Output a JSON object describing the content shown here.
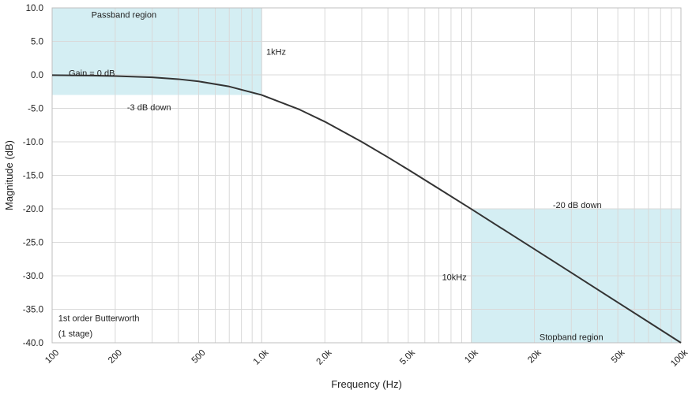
{
  "chart_data": {
    "type": "line",
    "xlabel": "Frequency (Hz)",
    "ylabel": "Magnitude (dB)",
    "x_scale": "log",
    "xlim": [
      100,
      100000
    ],
    "ylim": [
      -40,
      10
    ],
    "grid": true,
    "x_ticks": [
      {
        "value": 100,
        "label": "100"
      },
      {
        "value": 200,
        "label": "200"
      },
      {
        "value": 500,
        "label": "500"
      },
      {
        "value": 1000,
        "label": "1.0k"
      },
      {
        "value": 2000,
        "label": "2.0k"
      },
      {
        "value": 5000,
        "label": "5.0k"
      },
      {
        "value": 10000,
        "label": "10k"
      },
      {
        "value": 20000,
        "label": "20k"
      },
      {
        "value": 50000,
        "label": "50k"
      },
      {
        "value": 100000,
        "label": "100k"
      }
    ],
    "y_ticks": [
      {
        "value": 10,
        "label": "10.0"
      },
      {
        "value": 5,
        "label": "5.0"
      },
      {
        "value": 0,
        "label": "0.0"
      },
      {
        "value": -5,
        "label": "-5.0"
      },
      {
        "value": -10,
        "label": "-10.0"
      },
      {
        "value": -15,
        "label": "-15.0"
      },
      {
        "value": -20,
        "label": "-20.0"
      },
      {
        "value": -25,
        "label": "-25.0"
      },
      {
        "value": -30,
        "label": "-30.0"
      },
      {
        "value": -35,
        "label": "-35.0"
      },
      {
        "value": -40,
        "label": "-40.0"
      }
    ],
    "series": [
      {
        "color": "#333333",
        "x": [
          100,
          150,
          200,
          300,
          400,
          500,
          700,
          1000,
          1500,
          2000,
          3000,
          4000,
          5000,
          7000,
          10000,
          15000,
          20000,
          30000,
          50000,
          70000,
          100000
        ],
        "y": [
          -0.04,
          -0.1,
          -0.17,
          -0.37,
          -0.64,
          -0.97,
          -1.74,
          -3.01,
          -5.12,
          -6.99,
          -10.0,
          -12.3,
          -14.15,
          -17.0,
          -20.04,
          -23.54,
          -26.02,
          -29.54,
          -33.98,
          -36.9,
          -40.0
        ]
      }
    ],
    "regions": [
      {
        "name": "passband",
        "x_range": [
          100,
          1000
        ],
        "y_range": [
          -3,
          10
        ],
        "color": "#d4eef3"
      },
      {
        "name": "stopband",
        "x_range": [
          10000,
          100000
        ],
        "y_range": [
          -40,
          -20
        ],
        "color": "#d4eef3"
      }
    ],
    "annotations": [
      {
        "text": "Passband region",
        "x": 220,
        "y": 9.0,
        "anchor": "middle"
      },
      {
        "text": "1kHz",
        "x": 1050,
        "y": 3.5,
        "anchor": "start"
      },
      {
        "text": "Gain = 0 dB",
        "x": 120,
        "y": 0.3,
        "anchor": "start"
      },
      {
        "text": "-3 dB down",
        "x": 290,
        "y": -4.8,
        "anchor": "middle"
      },
      {
        "text": "-20 dB down",
        "x": 32000,
        "y": -19.4,
        "anchor": "middle"
      },
      {
        "text": "10kHz",
        "x": 9500,
        "y": -30.2,
        "anchor": "end"
      },
      {
        "text": "Stopband region",
        "x": 30000,
        "y": -39.1,
        "anchor": "middle"
      },
      {
        "text": "1st order Butterworth",
        "x": 107,
        "y": -36.3,
        "anchor": "start"
      },
      {
        "text": "(1 stage)",
        "x": 107,
        "y": -38.6,
        "anchor": "start"
      }
    ]
  }
}
